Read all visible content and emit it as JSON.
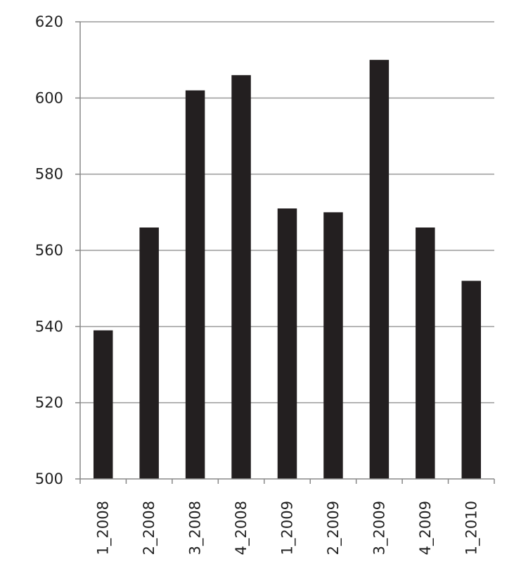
{
  "chart_data": {
    "type": "bar",
    "title": "",
    "xlabel": "",
    "ylabel": "",
    "categories": [
      "1_2008",
      "2_2008",
      "3_2008",
      "4_2008",
      "1_2009",
      "2_2009",
      "3_2009",
      "4_2009",
      "1_2010"
    ],
    "values": [
      539,
      566,
      602,
      606,
      571,
      570,
      610,
      566,
      552
    ],
    "ylim": [
      500,
      620
    ],
    "yticks": [
      500,
      520,
      540,
      560,
      580,
      600,
      620
    ],
    "grid": true,
    "legend": "none",
    "bar_color": "#231f20",
    "grid_color": "#9a9a9a"
  }
}
